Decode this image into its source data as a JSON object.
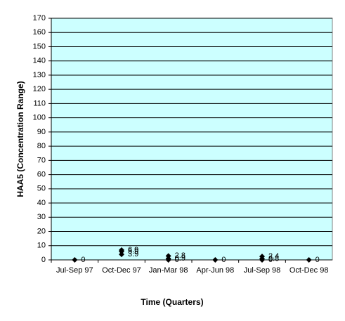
{
  "chart_data": {
    "type": "scatter",
    "x_label": "Time (Quarters)",
    "y_label": "HAA5 (Concentration Range)",
    "categories": [
      "Jul-Sep 97",
      "Oct-Dec 97",
      "Jan-Mar 98",
      "Apr-Jun 98",
      "Jul-Sep 98",
      "Oct-Dec 98"
    ],
    "series": [
      {
        "color": "#000000",
        "values": [
          0,
          6.9,
          2.8,
          0,
          2.4,
          0
        ]
      },
      {
        "color": "#000000",
        "values": [
          null,
          5.9,
          0.9,
          null,
          0.8,
          null
        ]
      },
      {
        "color": "#000000",
        "values": [
          null,
          3.9,
          0,
          null,
          0,
          null
        ]
      }
    ],
    "ylim": [
      0,
      170
    ],
    "yticks": [
      0,
      10,
      20,
      30,
      40,
      50,
      60,
      70,
      80,
      90,
      100,
      110,
      120,
      130,
      140,
      150,
      160,
      170
    ],
    "grid": true,
    "plot_background": "#ccffff"
  }
}
